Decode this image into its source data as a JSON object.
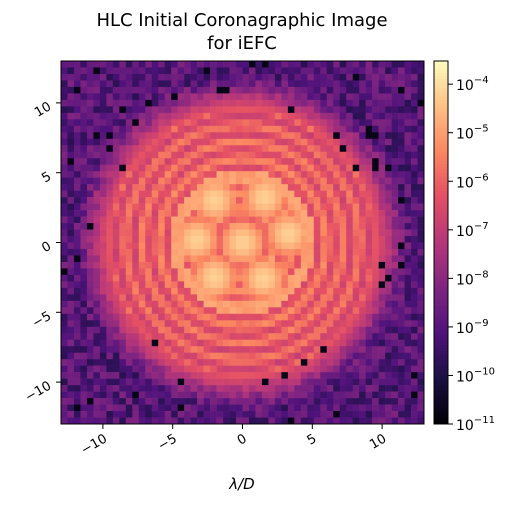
{
  "chart_data": {
    "type": "heatmap",
    "title": [
      "HLC Initial Coronagraphic Image",
      "for iEFC"
    ],
    "xlabel": "λ/D",
    "ylabel": "",
    "xlim": [
      -13,
      13
    ],
    "ylim": [
      -13,
      13
    ],
    "x_ticks": [
      -10,
      -5,
      0,
      5,
      10
    ],
    "y_ticks": [
      -10,
      -5,
      0,
      5,
      10
    ],
    "x_tick_labels": [
      "−10",
      "−5",
      "0",
      "5",
      "10"
    ],
    "y_tick_labels": [
      "−10",
      "−5",
      "0",
      "5",
      "10"
    ],
    "grid": false,
    "colormap": "magma",
    "color_scale": "log",
    "colorbar_range": [
      1e-11,
      0.0003
    ],
    "colorbar_ticks": [
      {
        "base": "10",
        "exp": "−11",
        "value": 1e-11
      },
      {
        "base": "10",
        "exp": "−10",
        "value": 1e-10
      },
      {
        "base": "10",
        "exp": "−9",
        "value": 1e-09
      },
      {
        "base": "10",
        "exp": "−8",
        "value": 1e-08
      },
      {
        "base": "10",
        "exp": "−7",
        "value": 1e-07
      },
      {
        "base": "10",
        "exp": "−6",
        "value": 1e-06
      },
      {
        "base": "10",
        "exp": "−5",
        "value": 1e-05
      },
      {
        "base": "10",
        "exp": "−4",
        "value": 0.0001
      }
    ],
    "image_grid_size": 56,
    "pattern": {
      "psf_outer_radius": 9.5,
      "ring_spacing": 1.2,
      "ring_log_peak": -4.6,
      "background_log_mean": -9.0,
      "central_spots_log": -4.2,
      "central_spots": [
        [
          -3.3,
          0.2
        ],
        [
          -2.0,
          3.0
        ],
        [
          1.6,
          3.2
        ],
        [
          3.3,
          0.6
        ],
        [
          1.5,
          -2.6
        ],
        [
          -2.0,
          -2.5
        ],
        [
          0.0,
          0.0
        ]
      ]
    }
  }
}
